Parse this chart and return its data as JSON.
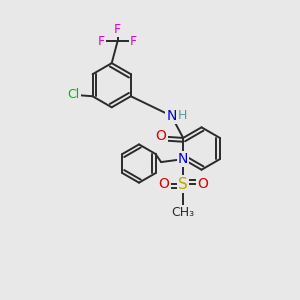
{
  "bg_color": "#e8e8e8",
  "bond_color": "#2a2a2a",
  "bond_width": 1.4,
  "font_size": 9,
  "fig_size": [
    3.0,
    3.0
  ],
  "dpi": 100,
  "colors": {
    "N": "#0000dd",
    "O": "#dd0000",
    "S": "#bbaa00",
    "Cl": "#00bb00",
    "F": "#dd00dd",
    "H": "#559999",
    "C": "#2a2a2a"
  }
}
